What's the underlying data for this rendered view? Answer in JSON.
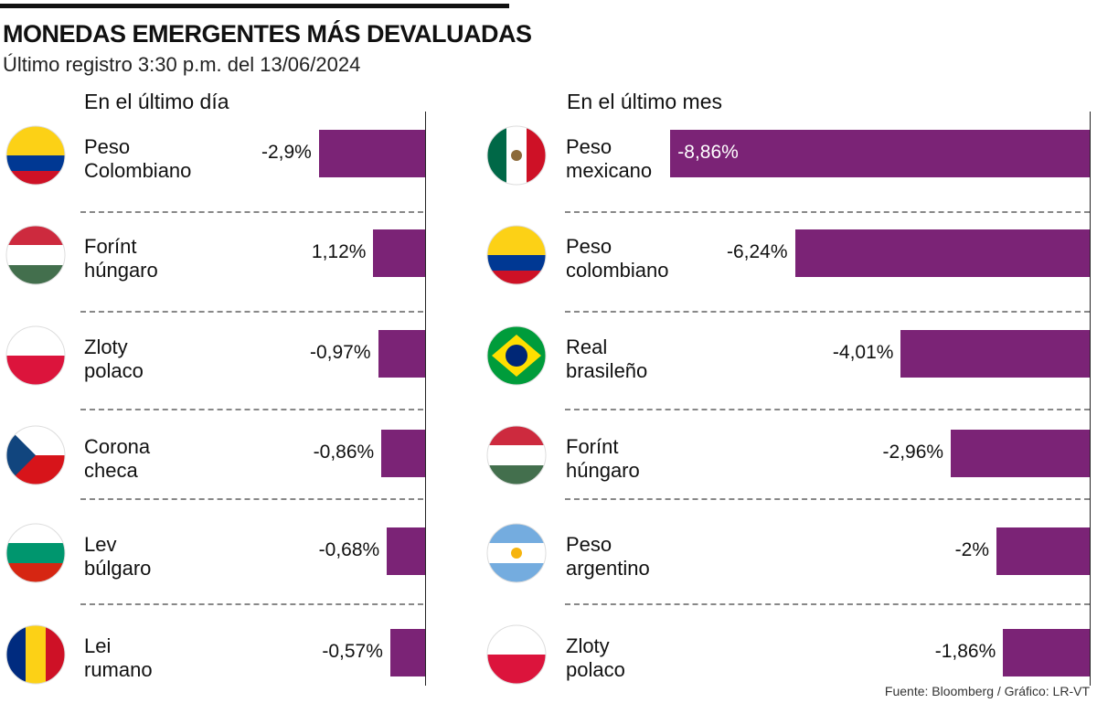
{
  "title": "MONEDAS EMERGENTES MÁS DEVALUADAS",
  "subtitle": "Último registro 3:30 p.m. del 13/06/2024",
  "source": "Fuente: Bloomberg / Gráfico: LR-VT",
  "colors": {
    "bar": "#7b2376"
  },
  "chart_data": [
    {
      "type": "bar",
      "orientation": "horizontal",
      "title": "En el último día",
      "categories": [
        [
          "Peso",
          "Colombiano"
        ],
        [
          "Forínt",
          "húngaro"
        ],
        [
          "Zloty",
          "polaco"
        ],
        [
          "Corona",
          "checa"
        ],
        [
          "Lev",
          "búlgaro"
        ],
        [
          "Lei",
          "rumano"
        ]
      ],
      "flags": [
        "colombia",
        "hungary",
        "poland",
        "czech",
        "bulgaria",
        "romania"
      ],
      "values": [
        -2.9,
        1.12,
        -0.97,
        -0.86,
        -0.68,
        -0.57
      ],
      "labels": [
        "-2,9%",
        "1,12%",
        "-0,97%",
        "-0,86%",
        "-0,68%",
        "-0,57%"
      ]
    },
    {
      "type": "bar",
      "orientation": "horizontal",
      "title": "En el último mes",
      "categories": [
        [
          "Peso",
          "mexicano"
        ],
        [
          "Peso",
          "colombiano"
        ],
        [
          "Real",
          "brasileño"
        ],
        [
          "Forínt",
          "húngaro"
        ],
        [
          "Peso",
          "argentino"
        ],
        [
          "Zloty",
          "polaco"
        ]
      ],
      "flags": [
        "mexico",
        "colombia",
        "brazil",
        "hungary",
        "argentina",
        "poland"
      ],
      "values": [
        -8.86,
        -6.24,
        -4.01,
        -2.96,
        -2,
        -1.86
      ],
      "labels": [
        "-8,86%",
        "-6,24%",
        "-4,01%",
        "-2,96%",
        "-2%",
        "-1,86%"
      ]
    }
  ]
}
